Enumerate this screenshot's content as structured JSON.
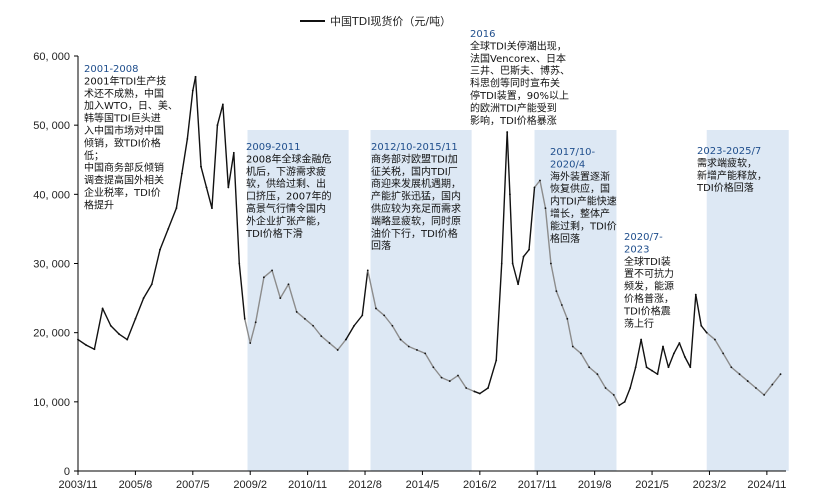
{
  "chart_data": {
    "type": "line",
    "title": "",
    "legend": {
      "label": "中国TDI现货价（元/吨）",
      "position": "top-center"
    },
    "ylim": [
      0,
      60000
    ],
    "yticks": [
      "0",
      "10, 000",
      "20, 000",
      "30, 000",
      "40, 000",
      "50, 000",
      "60, 000"
    ],
    "ytick_values": [
      0,
      10000,
      20000,
      30000,
      40000,
      50000,
      60000
    ],
    "xlim": [
      "2003-11",
      "2025-06"
    ],
    "xticks": [
      "2003/11",
      "2005/8",
      "2007/5",
      "2009/2",
      "2010/11",
      "2012/8",
      "2014/5",
      "2016/2",
      "2017/11",
      "2019/8",
      "2021/5",
      "2023/2",
      "2024/11"
    ],
    "grid": false,
    "colors": {
      "line": "#111111",
      "band": "#dde8f4",
      "head": "#1f4e8c"
    },
    "series": [
      {
        "name": "中国TDI现货价（元/吨）",
        "x": [
          "2003-11",
          "2004-02",
          "2004-05",
          "2004-08",
          "2004-11",
          "2005-02",
          "2005-05",
          "2005-08",
          "2005-11",
          "2006-02",
          "2006-05",
          "2006-08",
          "2006-11",
          "2007-01",
          "2007-03",
          "2007-05",
          "2007-06",
          "2007-08",
          "2007-10",
          "2007-12",
          "2008-02",
          "2008-04",
          "2008-06",
          "2008-08",
          "2008-10",
          "2008-12",
          "2009-02",
          "2009-04",
          "2009-07",
          "2009-10",
          "2010-01",
          "2010-04",
          "2010-07",
          "2010-10",
          "2011-01",
          "2011-04",
          "2011-07",
          "2011-10",
          "2012-01",
          "2012-04",
          "2012-07",
          "2012-09",
          "2012-12",
          "2013-03",
          "2013-06",
          "2013-09",
          "2013-12",
          "2014-03",
          "2014-06",
          "2014-09",
          "2014-12",
          "2015-03",
          "2015-06",
          "2015-09",
          "2015-12",
          "2016-02",
          "2016-05",
          "2016-08",
          "2016-10",
          "2016-12",
          "2017-01",
          "2017-02",
          "2017-04",
          "2017-06",
          "2017-08",
          "2017-10",
          "2017-12",
          "2018-02",
          "2018-04",
          "2018-06",
          "2018-08",
          "2018-10",
          "2018-12",
          "2019-03",
          "2019-06",
          "2019-09",
          "2019-12",
          "2020-03",
          "2020-05",
          "2020-07",
          "2020-09",
          "2020-11",
          "2021-01",
          "2021-03",
          "2021-05",
          "2021-07",
          "2021-09",
          "2021-11",
          "2022-01",
          "2022-03",
          "2022-05",
          "2022-07",
          "2022-09",
          "2022-11",
          "2023-01",
          "2023-04",
          "2023-07",
          "2023-10",
          "2024-01",
          "2024-04",
          "2024-07",
          "2024-10",
          "2025-01",
          "2025-04"
        ],
        "y": [
          19000,
          18200,
          17600,
          23500,
          21000,
          19800,
          19000,
          22000,
          25000,
          27000,
          32000,
          35000,
          38000,
          43000,
          48000,
          55000,
          57000,
          44000,
          41000,
          38000,
          50000,
          53000,
          41000,
          46000,
          30000,
          22000,
          18500,
          21500,
          28000,
          29000,
          25000,
          27000,
          23000,
          22000,
          21000,
          19500,
          18500,
          17500,
          19000,
          21000,
          22500,
          29000,
          23500,
          22500,
          21000,
          19000,
          18000,
          17500,
          17000,
          15000,
          13500,
          13000,
          13800,
          12000,
          11500,
          11200,
          12000,
          16000,
          30000,
          49000,
          40000,
          30000,
          27000,
          31000,
          32000,
          41000,
          42000,
          38000,
          30000,
          26000,
          24000,
          22000,
          18000,
          17000,
          15000,
          14000,
          12000,
          11000,
          9500,
          10000,
          12000,
          15000,
          19000,
          15000,
          14500,
          14000,
          18000,
          15000,
          17000,
          18500,
          16500,
          15000,
          25500,
          21000,
          20000,
          19000,
          17000,
          15000,
          14000,
          13000,
          12000,
          11000,
          12500,
          14000
        ]
      }
    ],
    "periods": [
      {
        "from": "2009-01",
        "to": "2012-02",
        "title": "2009-2011",
        "lines": [
          "2008年全球金融危",
          "机后，下游需求疲",
          "软，供给过剩、出",
          "口挤压，2007年的",
          "高景气行情令国内",
          "外企业扩张产能，",
          "TDI价格下滑"
        ]
      },
      {
        "from": "2012-10",
        "to": "2015-11",
        "title": "2012/10-2015/11",
        "lines": [
          "商务部对欧盟TDI加",
          "征关税，国内TDI厂",
          "商迎来发展机遇期，",
          "产能扩张迅猛，国内",
          "供应较为充足而需求",
          "端略显疲软，同时原",
          "油价下行，TDI价格",
          "回落"
        ]
      },
      {
        "from": "2017-10",
        "to": "2020-04",
        "title": "2017/10-",
        "title2": "2020/4",
        "lines": [
          "海外装置逐渐",
          "恢复供应，国",
          "内TDI产能快速",
          "增长，整体产",
          "能过剩，TDI价",
          "格回落"
        ]
      },
      {
        "from": "2023-01",
        "to": "2025-07",
        "title": "2023-2025/7",
        "lines": [
          "需求端疲软，",
          "新增产能释放，",
          "TDI价格回落"
        ]
      }
    ],
    "annotations": [
      {
        "title": "2001-2008",
        "lines": [
          "2001年TDI生产技",
          "术还不成熟，中国",
          "加入WTO，日、美、",
          "韩等国TDI巨头进",
          "入中国市场对中国",
          "倾销，致TDI价格",
          "低；",
          "中国商务部反倾销",
          "调查提高国外相关",
          "企业税率，TDI价",
          "格提升"
        ]
      },
      {
        "title": "2016",
        "lines": [
          "全球TDI关停潮出现，",
          "法国Vencorex、日本",
          "三井、巴斯夫、博苏、",
          "科思创等同时宣布关",
          "停TDI装置，90%以上",
          "的欧洲TDI产能受到",
          "影响，TDI价格暴涨"
        ]
      },
      {
        "title": "2020/7-",
        "title2": "2023",
        "lines": [
          "全球TDI装",
          "置不可抗力",
          "频发，能源",
          "价格普涨，",
          "TDI价格震",
          "荡上行"
        ]
      }
    ]
  }
}
